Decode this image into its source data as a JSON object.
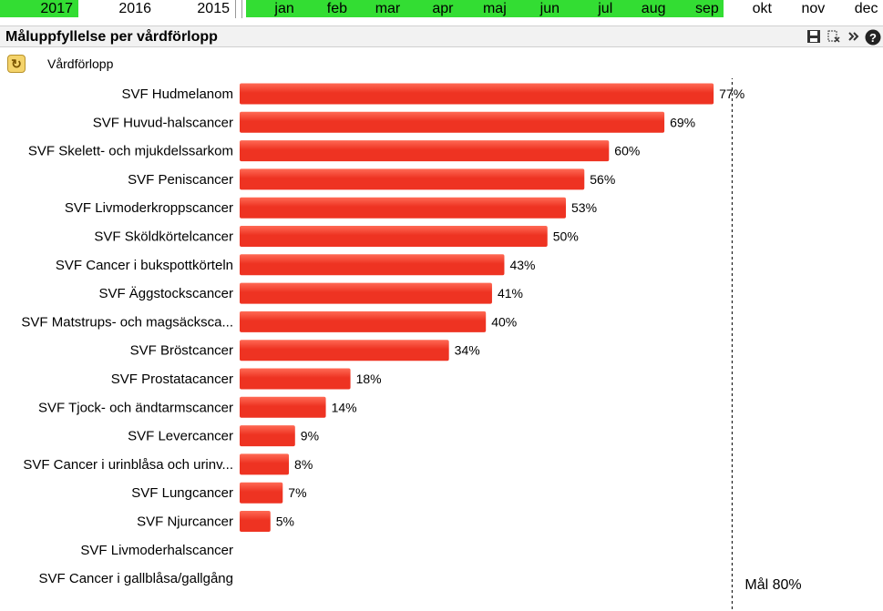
{
  "years": [
    {
      "label": "2017",
      "selected": true
    },
    {
      "label": "2016",
      "selected": false
    },
    {
      "label": "2015",
      "selected": false
    }
  ],
  "months": [
    {
      "label": "jan",
      "selected": true
    },
    {
      "label": "feb",
      "selected": true
    },
    {
      "label": "mar",
      "selected": true
    },
    {
      "label": "apr",
      "selected": true
    },
    {
      "label": "maj",
      "selected": true
    },
    {
      "label": "jun",
      "selected": true
    },
    {
      "label": "jul",
      "selected": true
    },
    {
      "label": "aug",
      "selected": true
    },
    {
      "label": "sep",
      "selected": true
    },
    {
      "label": "okt",
      "selected": false
    },
    {
      "label": "nov",
      "selected": false
    },
    {
      "label": "dec",
      "selected": false
    }
  ],
  "colors": {
    "selected": "#33dd33",
    "bar": "#ee3322",
    "bar_light": "#ff6a55"
  },
  "panel": {
    "title": "Måluppfyllelse per vårdförlopp",
    "dimension_label": "Vårdförlopp",
    "tools": [
      "save-icon",
      "clear-selection-icon",
      "more-icon",
      "help-icon"
    ]
  },
  "chart_data": {
    "type": "bar",
    "orientation": "horizontal",
    "categories": [
      "SVF Hudmelanom",
      "SVF Huvud-halscancer",
      "SVF Skelett- och mjukdelssarkom",
      "SVF Peniscancer",
      "SVF Livmoderkroppscancer",
      "SVF Sköldkörtelcancer",
      "SVF Cancer i bukspottkörteln",
      "SVF Äggstockscancer",
      "SVF Matstrups- och magsäcksca...",
      "SVF Bröstcancer",
      "SVF Prostatacancer",
      "SVF Tjock- och ändtarmscancer",
      "SVF Levercancer",
      "SVF Cancer i urinblåsa och urinv...",
      "SVF Lungcancer",
      "SVF Njurcancer",
      "SVF Livmoderhalscancer",
      "SVF Cancer i gallblåsa/gallgång"
    ],
    "values": [
      77,
      69,
      60,
      56,
      53,
      50,
      43,
      41,
      40,
      34,
      18,
      14,
      9,
      8,
      7,
      5,
      null,
      null
    ],
    "value_labels": [
      "77%",
      "69%",
      "60%",
      "56%",
      "53%",
      "50%",
      "43%",
      "41%",
      "40%",
      "34%",
      "18%",
      "14%",
      "9%",
      "8%",
      "7%",
      "5%",
      "",
      ""
    ],
    "xlim": [
      0,
      100
    ],
    "reference_line": {
      "value": 80,
      "label": "Mål 80%",
      "style": "dashed"
    },
    "grid": false,
    "legend": "none"
  }
}
